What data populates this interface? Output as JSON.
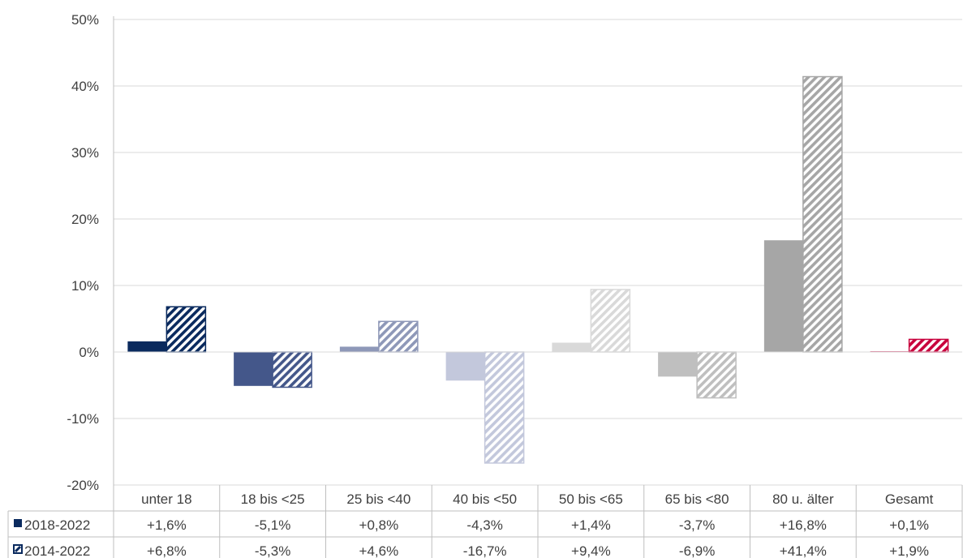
{
  "chart_data": {
    "type": "bar",
    "categories": [
      "unter 18",
      "18 bis <25",
      "25 bis <40",
      "40 bis <50",
      "50 bis <65",
      "65 bis <80",
      "80 u. älter",
      "Gesamt"
    ],
    "series": [
      {
        "name": "2018-2022",
        "pattern": "solid",
        "values": [
          1.6,
          -5.1,
          0.8,
          -4.3,
          1.4,
          -3.7,
          16.8,
          0.1
        ],
        "labels": [
          "+1,6%",
          "-5,1%",
          "+0,8%",
          "-4,3%",
          "+1,4%",
          "-3,7%",
          "+16,8%",
          "+0,1%"
        ]
      },
      {
        "name": "2014-2022",
        "pattern": "hatched",
        "values": [
          6.8,
          -5.3,
          4.6,
          -16.7,
          9.4,
          -6.9,
          41.4,
          1.9
        ],
        "labels": [
          "+6,8%",
          "-5,3%",
          "+4,6%",
          "-16,7%",
          "+9,4%",
          "-6,9%",
          "+41,4%",
          "+1,9%"
        ]
      }
    ],
    "category_colors": [
      "#0a2a5e",
      "#44578a",
      "#8e98b8",
      "#c3c8dc",
      "#d9d9d9",
      "#bfbfbf",
      "#a6a6a6",
      "#c8003c"
    ],
    "ylim": [
      -20,
      50
    ],
    "yticks": [
      -20,
      -10,
      0,
      10,
      20,
      30,
      40,
      50
    ],
    "ytick_labels": [
      "-20%",
      "-10%",
      "0%",
      "10%",
      "20%",
      "30%",
      "40%",
      "50%"
    ],
    "grid": true,
    "legend": "data-table",
    "title": "",
    "xlabel": "",
    "ylabel": ""
  }
}
